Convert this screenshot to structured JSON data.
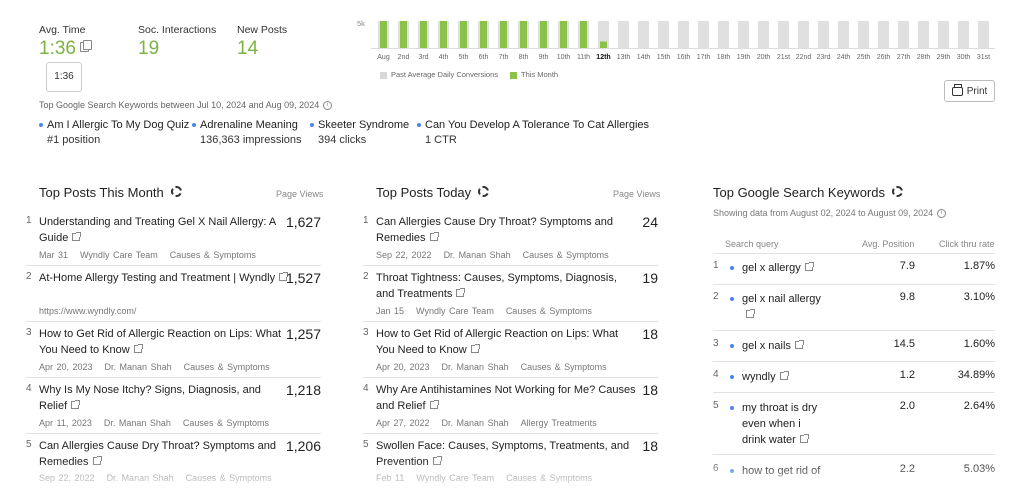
{
  "stats": {
    "avg_time_label": "Avg. Time",
    "avg_time_value": "1:36",
    "avg_time_tooltip": "1:36",
    "soc_label": "Soc. Interactions",
    "soc_value": "19",
    "new_posts_label": "New Posts",
    "new_posts_value": "14"
  },
  "chart_data": {
    "type": "bar",
    "ytick": "5k",
    "categories": [
      "Aug",
      "2nd",
      "3rd",
      "4th",
      "5th",
      "6th",
      "7th",
      "8th",
      "9th",
      "10th",
      "11th",
      "12th",
      "13th",
      "14th",
      "15th",
      "16th",
      "17th",
      "18th",
      "19th",
      "20th",
      "21st",
      "22nd",
      "23rd",
      "24th",
      "25th",
      "26th",
      "27th",
      "28th",
      "29th",
      "30th",
      "31st"
    ],
    "highlight_index": 11,
    "series": [
      {
        "name": "Past Average Daily Conversions",
        "color": "#e0e0e0",
        "values": [
          5000,
          5000,
          5000,
          5000,
          5000,
          5000,
          5000,
          5000,
          5000,
          5000,
          5000,
          5000,
          5000,
          5000,
          5000,
          5000,
          5000,
          5000,
          5000,
          5000,
          5000,
          5000,
          5000,
          5000,
          5000,
          5000,
          5000,
          5000,
          5000,
          5000,
          5000
        ]
      },
      {
        "name": "This Month",
        "color": "#8bc34a",
        "values": [
          5000,
          5000,
          5000,
          5000,
          5000,
          5000,
          5000,
          5000,
          5000,
          5000,
          5000,
          1200,
          null,
          null,
          null,
          null,
          null,
          null,
          null,
          null,
          null,
          null,
          null,
          null,
          null,
          null,
          null,
          null,
          null,
          null,
          null
        ]
      }
    ],
    "ylim": [
      0,
      5000
    ]
  },
  "print_label": "Print",
  "search_keywords": {
    "heading": "Top Google Search Keywords between Jul 10, 2024 and Aug 09, 2024",
    "items": [
      {
        "keyword": "Am I Allergic To My Dog Quiz",
        "stat": "#1 position"
      },
      {
        "keyword": "Adrenaline Meaning",
        "stat": "136,363 impressions"
      },
      {
        "keyword": "Skeeter Syndrome",
        "stat": "394 clicks"
      },
      {
        "keyword": "Can You Develop A Tolerance To Cat Allergies",
        "stat": "1 CTR"
      }
    ]
  },
  "top_posts_month": {
    "title": "Top Posts This Month",
    "col_label": "Page Views",
    "posts": [
      {
        "num": "1",
        "title": "Understanding and Treating Gel X Nail Allergy: A Guide",
        "views": "1,627",
        "date": "Mar 31",
        "author": "Wyndly Care Team",
        "category": "Causes & Symptoms"
      },
      {
        "num": "2",
        "title": "At-Home Allergy Testing and Treatment | Wyndly",
        "views": "1,527",
        "url": "https://www.wyndly.com/"
      },
      {
        "num": "3",
        "title": "How to Get Rid of Allergic Reaction on Lips: What You Need to Know",
        "views": "1,257",
        "date": "Apr 20, 2023",
        "author": "Dr. Manan Shah",
        "category": "Causes & Symptoms"
      },
      {
        "num": "4",
        "title": "Why Is My Nose Itchy? Signs, Diagnosis, and Relief",
        "views": "1,218",
        "date": "Apr 11, 2023",
        "author": "Dr. Manan Shah",
        "category": "Causes & Symptoms"
      },
      {
        "num": "5",
        "title": "Can Allergies Cause Dry Throat? Symptoms and Remedies",
        "views": "1,206",
        "date": "Sep 22, 2022",
        "author": "Dr. Manan Shah",
        "category": "Causes & Symptoms"
      }
    ]
  },
  "top_posts_today": {
    "title": "Top Posts Today",
    "col_label": "Page Views",
    "posts": [
      {
        "num": "1",
        "title": "Can Allergies Cause Dry Throat? Symptoms and Remedies",
        "views": "24",
        "date": "Sep 22, 2022",
        "author": "Dr. Manan Shah",
        "category": "Causes & Symptoms"
      },
      {
        "num": "2",
        "title": "Throat Tightness: Causes, Symptoms, Diagnosis, and Treatments",
        "views": "19",
        "date": "Jan 15",
        "author": "Wyndly Care Team",
        "category": "Causes & Symptoms"
      },
      {
        "num": "3",
        "title": "How to Get Rid of Allergic Reaction on Lips: What You Need to Know",
        "views": "18",
        "date": "Apr 20, 2023",
        "author": "Dr. Manan Shah",
        "category": "Causes & Symptoms"
      },
      {
        "num": "4",
        "title": "Why Are Antihistamines Not Working for Me? Causes and Relief",
        "views": "18",
        "date": "Apr 27, 2022",
        "author": "Dr. Manan Shah",
        "category": "Allergy Treatments"
      },
      {
        "num": "5",
        "title": "Swollen Face: Causes, Symptoms, Treatments, and Prevention",
        "views": "18",
        "date": "Feb 11",
        "author": "Wyndly Care Team",
        "category": "Causes & Symptoms"
      }
    ]
  },
  "top_keywords": {
    "title": "Top Google Search Keywords",
    "subtitle": "Showing data from August 02, 2024 to August 09, 2024",
    "col_query": "Search query",
    "col_position": "Avg. Position",
    "col_ctr": "Click thru rate",
    "rows": [
      {
        "num": "1",
        "query": "gel x allergy",
        "position": "7.9",
        "ctr": "1.87%"
      },
      {
        "num": "2",
        "query": "gel x nail allergy",
        "position": "9.8",
        "ctr": "3.10%"
      },
      {
        "num": "3",
        "query": "gel x nails",
        "position": "14.5",
        "ctr": "1.60%"
      },
      {
        "num": "4",
        "query": "wyndly",
        "position": "1.2",
        "ctr": "34.89%"
      },
      {
        "num": "5",
        "query": "my throat is dry even when i drink water",
        "position": "2.0",
        "ctr": "2.64%"
      },
      {
        "num": "6",
        "query": "how to get rid of",
        "position": "2.2",
        "ctr": "5.03%"
      }
    ]
  }
}
